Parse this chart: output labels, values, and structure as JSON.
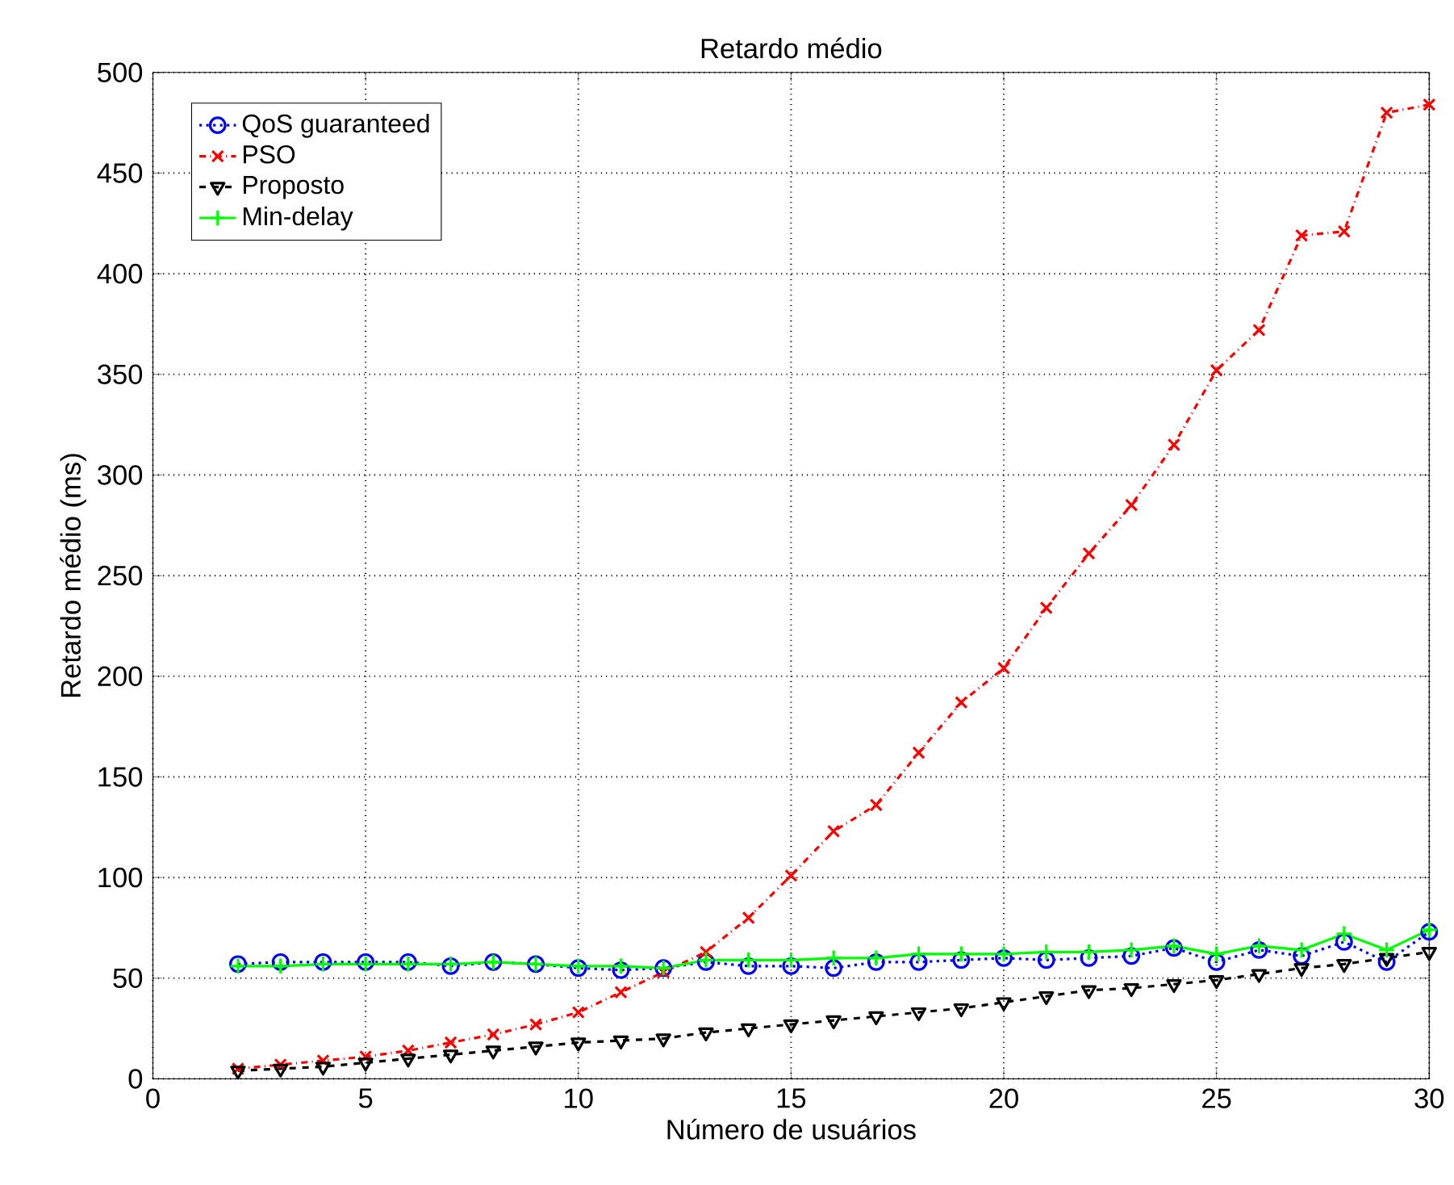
{
  "chart_data": {
    "type": "line",
    "title": "Retardo médio",
    "xlabel": "Número de usuários",
    "ylabel": "Retardo médio (ms)",
    "x": [
      2,
      3,
      4,
      5,
      6,
      7,
      8,
      9,
      10,
      11,
      12,
      13,
      14,
      15,
      16,
      17,
      18,
      19,
      20,
      21,
      22,
      23,
      24,
      25,
      26,
      27,
      28,
      29,
      30
    ],
    "series": [
      {
        "name": "QoS guaranteed",
        "color": "#0000ff",
        "marker": "circle",
        "line_style": "dotted",
        "values": [
          57,
          58,
          58,
          58,
          58,
          56,
          58,
          57,
          55,
          54,
          55,
          58,
          56,
          56,
          55,
          58,
          58,
          59,
          60,
          59,
          60,
          61,
          65,
          58,
          64,
          61,
          68,
          58,
          73
        ]
      },
      {
        "name": "PSO",
        "color": "#ff0000",
        "marker": "cross",
        "line_style": "dashdot",
        "values": [
          5,
          7,
          9,
          11,
          14,
          18,
          22,
          27,
          33,
          43,
          53,
          63,
          80,
          101,
          123,
          136,
          162,
          187,
          204,
          234,
          261,
          285,
          315,
          352,
          372,
          419,
          421,
          480,
          484
        ]
      },
      {
        "name": "Proposto",
        "color": "#000000",
        "marker": "triangle_down",
        "line_style": "dashed",
        "values": [
          4,
          5,
          6,
          8,
          10,
          12,
          14,
          16,
          18,
          19,
          20,
          23,
          25,
          27,
          29,
          31,
          33,
          35,
          38,
          41,
          44,
          45,
          47,
          49,
          52,
          55,
          57,
          60,
          63
        ]
      },
      {
        "name": "Min-delay",
        "color": "#00ff00",
        "marker": "plus",
        "line_style": "solid",
        "values": [
          56,
          56,
          57,
          57,
          57,
          57,
          58,
          57,
          56,
          56,
          55,
          59,
          59,
          59,
          60,
          60,
          62,
          62,
          62,
          63,
          63,
          64,
          66,
          62,
          66,
          64,
          72,
          64,
          74
        ]
      }
    ],
    "xlim": [
      0,
      30
    ],
    "xticks": [
      0,
      5,
      10,
      15,
      20,
      25,
      30
    ],
    "ylim": [
      0,
      500
    ],
    "yticks": [
      0,
      50,
      100,
      150,
      200,
      250,
      300,
      350,
      400,
      450,
      500
    ],
    "grid": true,
    "legend": "top left"
  }
}
